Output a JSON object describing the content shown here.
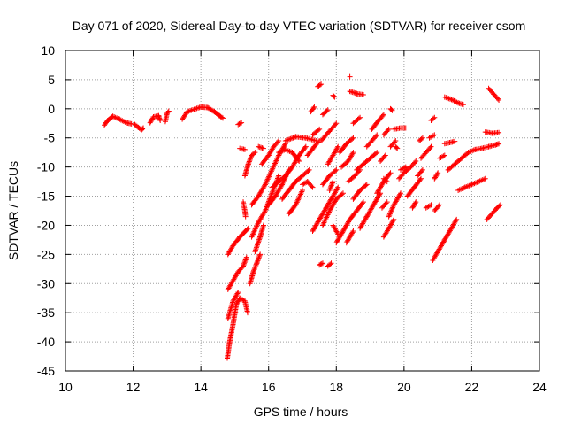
{
  "chart_data": {
    "type": "scatter",
    "title": "Day 071 of 2020, Sidereal Day-to-day VTEC variation (SDTVAR) for receiver csom",
    "xlabel": "GPS time / hours",
    "ylabel": "SDTVAR / TECUs",
    "xlim": [
      10,
      24
    ],
    "ylim": [
      -45,
      10
    ],
    "xticks": [
      10,
      12,
      14,
      16,
      18,
      20,
      22,
      24
    ],
    "yticks": [
      10,
      5,
      0,
      -5,
      -10,
      -15,
      -20,
      -25,
      -30,
      -35,
      -40,
      -45
    ],
    "xtick_labels": [
      "10",
      "12",
      "14",
      "16",
      "18",
      "20",
      "22",
      "24"
    ],
    "ytick_labels": [
      "10",
      "5",
      "0",
      "-5",
      "-10",
      "-15",
      "-20",
      "-25",
      "-30",
      "-35",
      "-40",
      "-45"
    ],
    "grid": true,
    "marker": "+",
    "colors": {
      "marker": "#ff0000",
      "grid": "#a0a0a0",
      "axis": "#000000"
    },
    "series": [
      {
        "name": "SDTVAR",
        "tracks": [
          [
            11.15,
            -2.8,
            11.25,
            -2.0,
            11.4,
            -1.3,
            11.6,
            -1.8,
            11.8,
            -2.4,
            11.95,
            -2.6
          ],
          [
            12.05,
            -2.7,
            12.15,
            -3.2,
            12.25,
            -3.6,
            12.3,
            -3.3
          ],
          [
            12.5,
            -2.4,
            12.6,
            -1.4,
            12.75,
            -1.2,
            12.8,
            -2.0
          ],
          [
            12.95,
            -2.2,
            13.0,
            -0.8,
            13.05,
            -0.4
          ],
          [
            13.45,
            -1.8,
            13.6,
            -0.5,
            13.8,
            -0.1,
            14.0,
            0.3,
            14.2,
            0.2,
            14.4,
            -0.5,
            14.55,
            -1.2,
            14.65,
            -1.6
          ],
          [
            15.1,
            -2.7,
            15.2,
            -2.4
          ],
          [
            14.78,
            -42.8,
            14.85,
            -40.0,
            14.95,
            -37.0,
            15.05,
            -33.5,
            15.15,
            -32.5,
            15.3,
            -33.0,
            15.38,
            -35.0
          ],
          [
            14.8,
            -36.0,
            14.95,
            -33.0,
            15.1,
            -31.5
          ],
          [
            14.8,
            -31.0,
            14.95,
            -29.5,
            15.1,
            -28.0,
            15.25,
            -27.0,
            15.35,
            -25.5
          ],
          [
            14.8,
            -25.0,
            14.95,
            -23.5,
            15.15,
            -22.0,
            15.4,
            -20.5
          ],
          [
            15.45,
            -30.0,
            15.55,
            -28.0,
            15.65,
            -26.5,
            15.75,
            -25.0
          ],
          [
            15.6,
            -24.5,
            15.75,
            -22.0,
            15.85,
            -20.0
          ],
          [
            15.25,
            -16.0,
            15.3,
            -17.5,
            15.32,
            -18.5
          ],
          [
            15.15,
            -6.8,
            15.3,
            -7.0
          ],
          [
            15.3,
            -11.5,
            15.4,
            -9.5,
            15.5,
            -8.0,
            15.6,
            -7.5
          ],
          [
            15.5,
            -22.0,
            15.7,
            -19.5,
            15.9,
            -17.5,
            16.1,
            -14.5,
            16.3,
            -11.5
          ],
          [
            15.5,
            -16.5,
            15.7,
            -15.0,
            15.9,
            -13.0,
            16.1,
            -10.5,
            16.3,
            -8.0,
            16.5,
            -6.0
          ],
          [
            15.8,
            -9.5,
            16.0,
            -8.0,
            16.15,
            -6.5,
            16.3,
            -5.5
          ],
          [
            15.7,
            -6.5,
            15.85,
            -6.8
          ],
          [
            16.0,
            -16.5,
            16.2,
            -15.0,
            16.4,
            -13.0,
            16.6,
            -10.5
          ],
          [
            16.1,
            -13.5,
            16.3,
            -12.5,
            16.5,
            -11.5,
            16.7,
            -10.0,
            16.9,
            -8.0,
            17.1,
            -6.5
          ],
          [
            16.3,
            -7.5,
            16.5,
            -7.0,
            16.7,
            -7.5,
            16.9,
            -9.0
          ],
          [
            16.4,
            -15.5,
            16.6,
            -14.0,
            16.8,
            -12.5,
            17.0,
            -11.5,
            17.2,
            -10.5
          ],
          [
            16.5,
            -5.5,
            16.8,
            -4.8,
            17.1,
            -5.0,
            17.4,
            -5.5
          ],
          [
            16.6,
            -18.0,
            16.8,
            -16.5,
            17.0,
            -14.0
          ],
          [
            17.0,
            -13.0,
            17.15,
            -12.5,
            17.3,
            -13.5
          ],
          [
            17.15,
            -8.0,
            17.35,
            -6.5,
            17.5,
            -5.5
          ],
          [
            17.3,
            -4.5,
            17.5,
            -3.5
          ],
          [
            17.25,
            -0.5,
            17.35,
            0.3
          ],
          [
            17.45,
            3.8,
            17.55,
            4.2
          ],
          [
            17.55,
            -5.5,
            17.7,
            -4.5,
            17.85,
            -3.5,
            18.0,
            -2.5
          ],
          [
            17.6,
            -1.0,
            17.75,
            -0.2
          ],
          [
            17.9,
            2.3,
            17.95,
            2.0
          ],
          [
            18.4,
            5.5
          ],
          [
            18.4,
            3.0,
            18.6,
            2.6,
            18.8,
            2.4
          ],
          [
            17.3,
            -21.0,
            17.5,
            -19.0,
            17.7,
            -17.0,
            17.9,
            -15.0,
            18.05,
            -13.5
          ],
          [
            17.6,
            -20.0,
            17.8,
            -17.5,
            18.0,
            -15.5,
            18.2,
            -14.5
          ],
          [
            17.5,
            -26.8,
            17.6,
            -26.5
          ],
          [
            17.75,
            -27.0,
            17.85,
            -26.5
          ],
          [
            17.6,
            -13.0,
            17.8,
            -11.5,
            18.0,
            -10.5
          ],
          [
            17.75,
            -9.5,
            17.9,
            -8.0,
            18.05,
            -6.5
          ],
          [
            17.8,
            -14.0,
            17.9,
            -12.5
          ],
          [
            17.9,
            -20.0,
            18.05,
            -21.5
          ],
          [
            18.0,
            -23.0,
            18.2,
            -21.0,
            18.4,
            -19.0,
            18.6,
            -17.5,
            18.8,
            -16.0
          ],
          [
            18.15,
            -10.0,
            18.35,
            -9.0,
            18.5,
            -7.5
          ],
          [
            18.1,
            -7.5,
            18.3,
            -6.0,
            18.5,
            -5.0
          ],
          [
            18.3,
            -23.0,
            18.5,
            -21.0
          ],
          [
            18.35,
            -12.5,
            18.55,
            -11.5,
            18.7,
            -10.5
          ],
          [
            18.5,
            -15.5,
            18.7,
            -14.0,
            18.9,
            -13.0
          ],
          [
            18.5,
            -2.5,
            18.7,
            -1.5
          ],
          [
            18.6,
            -10.5,
            18.8,
            -9.5,
            19.0,
            -8.5,
            19.2,
            -7.5
          ],
          [
            18.7,
            -20.5,
            18.9,
            -18.5,
            19.1,
            -16.5,
            19.3,
            -14.5
          ],
          [
            18.9,
            -6.5,
            19.05,
            -5.5,
            19.2,
            -4.5
          ],
          [
            19.05,
            -3.5,
            19.25,
            -2.0,
            19.4,
            -1.0
          ],
          [
            19.2,
            -14.5,
            19.4,
            -12.5,
            19.6,
            -11.0
          ],
          [
            19.3,
            -9.0,
            19.45,
            -8.0
          ],
          [
            19.35,
            -17.0,
            19.5,
            -16.0
          ],
          [
            19.4,
            -22.0,
            19.55,
            -20.5,
            19.7,
            -19.0
          ],
          [
            19.4,
            -4.5,
            19.55,
            -3.5
          ],
          [
            19.6,
            0.0,
            19.65,
            -0.3
          ],
          [
            19.4,
            -12.0,
            19.5,
            -12.5
          ],
          [
            19.55,
            -18.5,
            19.7,
            -16.5,
            19.9,
            -14.5
          ],
          [
            19.6,
            -6.5,
            19.75,
            -5.5
          ],
          [
            19.7,
            -3.5,
            19.9,
            -3.3,
            20.05,
            -3.3
          ],
          [
            19.75,
            -6.5,
            19.8,
            -6.8
          ],
          [
            19.9,
            -10.5,
            20.05,
            -10.0
          ],
          [
            19.85,
            -12.0,
            20.0,
            -11.0,
            20.2,
            -10.0,
            20.35,
            -9.0
          ],
          [
            20.25,
            -17.0,
            20.35,
            -16.0
          ],
          [
            20.1,
            -15.0,
            20.3,
            -13.5,
            20.5,
            -12.0
          ],
          [
            20.4,
            -11.5,
            20.55,
            -10.5
          ],
          [
            20.5,
            -8.5,
            20.65,
            -7.5,
            20.8,
            -6.5
          ],
          [
            20.45,
            -5.5,
            20.55,
            -5.0
          ],
          [
            20.75,
            -5.0,
            20.9,
            -4.5
          ],
          [
            20.8,
            -2.0,
            20.9,
            -1.5
          ],
          [
            20.65,
            -17.0,
            20.8,
            -16.5
          ],
          [
            20.85,
            -26.0,
            21.0,
            -24.5,
            21.2,
            -22.5,
            21.4,
            -20.5,
            21.55,
            -19.0
          ],
          [
            20.9,
            -12.0,
            21.0,
            -11.0
          ],
          [
            20.9,
            -17.5,
            21.05,
            -16.5
          ],
          [
            21.05,
            -8.5,
            21.2,
            -8.0
          ],
          [
            21.2,
            -6.0,
            21.35,
            -5.8,
            21.5,
            -5.6
          ],
          [
            21.2,
            2.0,
            21.4,
            1.6,
            21.6,
            1.0,
            21.75,
            0.7
          ],
          [
            21.3,
            -10.5,
            21.5,
            -9.5,
            21.7,
            -8.5,
            21.9,
            -7.5
          ],
          [
            21.6,
            -14.0,
            21.8,
            -13.5,
            22.0,
            -13.0,
            22.2,
            -12.5,
            22.4,
            -12.0
          ],
          [
            21.9,
            -7.5,
            22.1,
            -7.0,
            22.3,
            -6.8,
            22.5,
            -6.5,
            22.7,
            -6.2,
            22.8,
            -6.0
          ],
          [
            22.45,
            -19.0,
            22.6,
            -18.0,
            22.75,
            -17.0,
            22.85,
            -16.5
          ],
          [
            22.5,
            3.5,
            22.65,
            2.5,
            22.8,
            1.5
          ],
          [
            22.4,
            -4.0,
            22.6,
            -4.2,
            22.8,
            -4.1
          ]
        ]
      }
    ]
  }
}
